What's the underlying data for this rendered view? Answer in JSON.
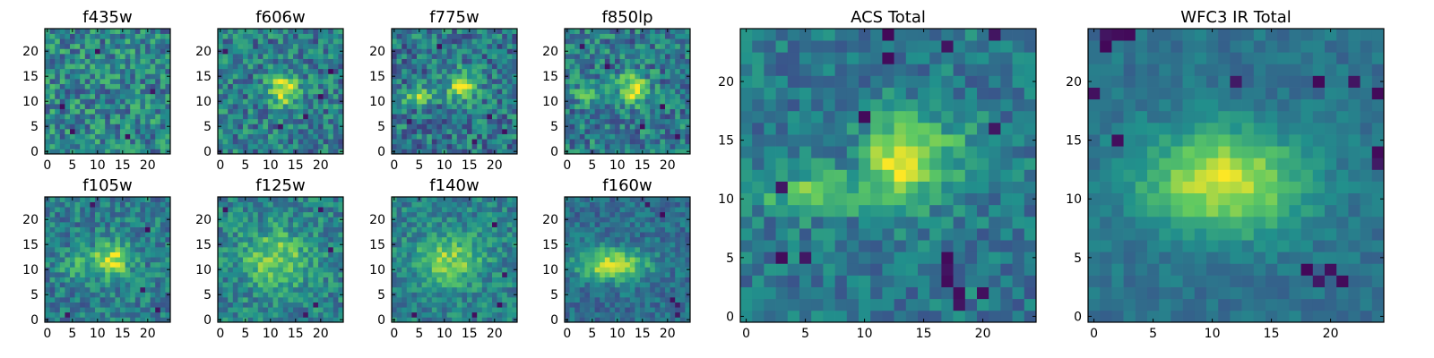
{
  "figure": {
    "colormap": "viridis",
    "colormap_stops": [
      "#440154",
      "#3b528b",
      "#21918c",
      "#5ec962",
      "#fde725"
    ]
  },
  "chart_data": [
    {
      "type": "heatmap",
      "title": "f435w",
      "grid_size": 25,
      "xlim": [
        -0.5,
        24.5
      ],
      "ylim": [
        -0.5,
        24.5
      ],
      "xticks": [
        0,
        5,
        10,
        15,
        20
      ],
      "yticks": [
        0,
        5,
        10,
        15,
        20
      ],
      "grid": false,
      "noise": 0.24,
      "bias": 0.46,
      "sources": [],
      "dark_pixels": [
        [
          3,
          9
        ],
        [
          16,
          3
        ],
        [
          21,
          12
        ],
        [
          10,
          20
        ],
        [
          5,
          4
        ]
      ]
    },
    {
      "type": "heatmap",
      "title": "f606w",
      "grid_size": 25,
      "xlim": [
        -0.5,
        24.5
      ],
      "ylim": [
        -0.5,
        24.5
      ],
      "xticks": [
        0,
        5,
        10,
        15,
        20
      ],
      "yticks": [
        0,
        5,
        10,
        15,
        20
      ],
      "grid": false,
      "noise": 0.22,
      "bias": 0.42,
      "sources": [
        {
          "x": 12.5,
          "y": 12.5,
          "sx": 2.2,
          "sy": 2.2,
          "a": 0.55
        }
      ],
      "dark_pixels": [
        [
          20,
          11
        ],
        [
          17,
          7
        ],
        [
          1,
          20
        ],
        [
          12,
          5
        ],
        [
          22,
          16
        ]
      ]
    },
    {
      "type": "heatmap",
      "title": "f775w",
      "grid_size": 25,
      "xlim": [
        -0.5,
        24.5
      ],
      "ylim": [
        -0.5,
        24.5
      ],
      "xticks": [
        0,
        5,
        10,
        15,
        20
      ],
      "yticks": [
        0,
        5,
        10,
        15,
        20
      ],
      "grid": false,
      "noise": 0.22,
      "bias": 0.4,
      "sources": [
        {
          "x": 13.5,
          "y": 13,
          "sx": 2.0,
          "sy": 2.0,
          "a": 0.55
        },
        {
          "x": 5,
          "y": 11,
          "sx": 2.5,
          "sy": 1.2,
          "a": 0.35
        }
      ],
      "dark_pixels": [
        [
          19,
          7
        ],
        [
          22,
          4
        ],
        [
          3,
          6
        ],
        [
          16,
          2
        ],
        [
          9,
          21
        ]
      ]
    },
    {
      "type": "heatmap",
      "title": "f850lp",
      "grid_size": 25,
      "xlim": [
        -0.5,
        24.5
      ],
      "ylim": [
        -0.5,
        24.5
      ],
      "xticks": [
        0,
        5,
        10,
        15,
        20
      ],
      "yticks": [
        0,
        5,
        10,
        15,
        20
      ],
      "grid": false,
      "noise": 0.22,
      "bias": 0.42,
      "sources": [
        {
          "x": 13,
          "y": 12.5,
          "sx": 2.0,
          "sy": 2.0,
          "a": 0.55
        },
        {
          "x": 5,
          "y": 11,
          "sx": 2.5,
          "sy": 1.2,
          "a": 0.25
        }
      ],
      "dark_pixels": [
        [
          22,
          3
        ],
        [
          19,
          9
        ],
        [
          3,
          21
        ],
        [
          15,
          5
        ],
        [
          8,
          17
        ]
      ]
    },
    {
      "type": "heatmap",
      "title": "f105w",
      "grid_size": 25,
      "xlim": [
        -0.5,
        24.5
      ],
      "ylim": [
        -0.5,
        24.5
      ],
      "xticks": [
        0,
        5,
        10,
        15,
        20
      ],
      "yticks": [
        0,
        5,
        10,
        15,
        20
      ],
      "grid": false,
      "noise": 0.18,
      "bias": 0.42,
      "sources": [
        {
          "x": 13,
          "y": 12,
          "sx": 2.5,
          "sy": 2.5,
          "a": 0.5
        },
        {
          "x": 6,
          "y": 11,
          "sx": 3.0,
          "sy": 2.0,
          "a": 0.2
        }
      ],
      "dark_pixels": [
        [
          20,
          18
        ],
        [
          19,
          6
        ],
        [
          22,
          2
        ],
        [
          4,
          1
        ],
        [
          9,
          23
        ]
      ]
    },
    {
      "type": "heatmap",
      "title": "f125w",
      "grid_size": 25,
      "xlim": [
        -0.5,
        24.5
      ],
      "ylim": [
        -0.5,
        24.5
      ],
      "xticks": [
        0,
        5,
        10,
        15,
        20
      ],
      "yticks": [
        0,
        5,
        10,
        15,
        20
      ],
      "grid": false,
      "noise": 0.18,
      "bias": 0.45,
      "sources": [
        {
          "x": 11,
          "y": 12,
          "sx": 4.5,
          "sy": 4.0,
          "a": 0.35
        }
      ],
      "dark_pixels": [
        [
          20,
          22
        ],
        [
          19,
          3
        ],
        [
          22,
          14
        ],
        [
          1,
          22
        ],
        [
          17,
          1
        ]
      ]
    },
    {
      "type": "heatmap",
      "title": "f140w",
      "grid_size": 25,
      "xlim": [
        -0.5,
        24.5
      ],
      "ylim": [
        -0.5,
        24.5
      ],
      "xticks": [
        0,
        5,
        10,
        15,
        20
      ],
      "yticks": [
        0,
        5,
        10,
        15,
        20
      ],
      "grid": false,
      "noise": 0.16,
      "bias": 0.44,
      "sources": [
        {
          "x": 11,
          "y": 12,
          "sx": 4.5,
          "sy": 3.5,
          "a": 0.38
        }
      ],
      "dark_pixels": [
        [
          20,
          19
        ],
        [
          16,
          1
        ],
        [
          4,
          1
        ],
        [
          22,
          9
        ],
        [
          21,
          3
        ]
      ]
    },
    {
      "type": "heatmap",
      "title": "f160w",
      "grid_size": 25,
      "xlim": [
        -0.5,
        24.5
      ],
      "ylim": [
        -0.5,
        24.5
      ],
      "xticks": [
        0,
        5,
        10,
        15,
        20
      ],
      "yticks": [
        0,
        5,
        10,
        15,
        20
      ],
      "grid": false,
      "noise": 0.13,
      "bias": 0.36,
      "sources": [
        {
          "x": 9,
          "y": 11,
          "sx": 5.0,
          "sy": 2.2,
          "a": 0.55
        }
      ],
      "dark_pixels": [
        [
          21,
          4
        ],
        [
          22,
          3
        ],
        [
          16,
          23
        ],
        [
          19,
          21
        ],
        [
          22,
          1
        ]
      ]
    },
    {
      "type": "heatmap",
      "title": "ACS Total",
      "grid_size": 25,
      "xlim": [
        -0.5,
        24.5
      ],
      "ylim": [
        -0.5,
        24.5
      ],
      "xticks": [
        0,
        5,
        10,
        15,
        20
      ],
      "yticks": [
        0,
        5,
        10,
        15,
        20
      ],
      "grid": false,
      "noise": 0.15,
      "bias": 0.4,
      "sources": [
        {
          "x": 13,
          "y": 13,
          "sx": 2.2,
          "sy": 2.6,
          "a": 0.58
        },
        {
          "x": 5.5,
          "y": 10.5,
          "sx": 3.0,
          "sy": 1.3,
          "a": 0.35
        },
        {
          "x": 18,
          "y": 14,
          "sx": 2.0,
          "sy": 2.0,
          "a": 0.18
        }
      ],
      "dark_pixels": [
        [
          3,
          11
        ],
        [
          3,
          5
        ],
        [
          5,
          5
        ],
        [
          17,
          5
        ],
        [
          17,
          4
        ],
        [
          17,
          3
        ],
        [
          18,
          2
        ],
        [
          20,
          2
        ],
        [
          10,
          17
        ],
        [
          12,
          24
        ],
        [
          17,
          23
        ],
        [
          21,
          24
        ],
        [
          12,
          22
        ],
        [
          21,
          16
        ],
        [
          18,
          1
        ]
      ]
    },
    {
      "type": "heatmap",
      "title": "WFC3 IR Total",
      "grid_size": 25,
      "xlim": [
        -0.5,
        24.5
      ],
      "ylim": [
        -0.5,
        24.5
      ],
      "xticks": [
        0,
        5,
        10,
        15,
        20
      ],
      "yticks": [
        0,
        5,
        10,
        15,
        20
      ],
      "grid": false,
      "noise": 0.08,
      "bias": 0.38,
      "sources": [
        {
          "x": 11,
          "y": 11.5,
          "sx": 4.8,
          "sy": 3.0,
          "a": 0.55
        }
      ],
      "dark_pixels": [
        [
          1,
          24
        ],
        [
          2,
          24
        ],
        [
          3,
          24
        ],
        [
          1,
          23
        ],
        [
          12,
          20
        ],
        [
          19,
          20
        ],
        [
          22,
          20
        ],
        [
          24,
          19
        ],
        [
          24,
          14
        ],
        [
          24,
          13
        ],
        [
          19,
          3
        ],
        [
          20,
          4
        ],
        [
          21,
          3
        ],
        [
          18,
          4
        ],
        [
          0,
          19
        ],
        [
          2,
          15
        ]
      ]
    }
  ]
}
